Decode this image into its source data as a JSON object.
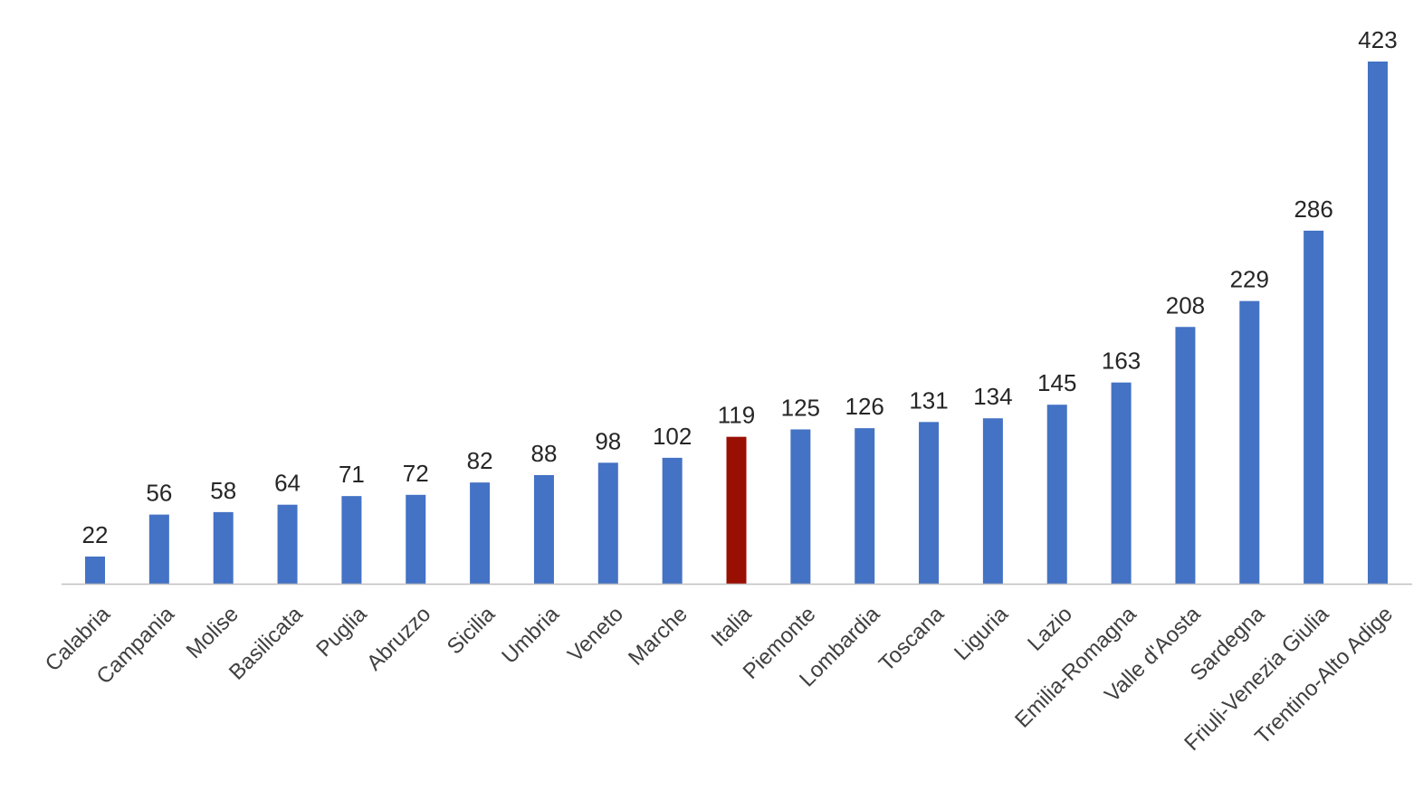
{
  "chart_data": {
    "type": "bar",
    "categories": [
      "Calabria",
      "Campania",
      "Molise",
      "Basilicata",
      "Puglia",
      "Abruzzo",
      "Sicilia",
      "Umbria",
      "Veneto",
      "Marche",
      "Italia",
      "Piemonte",
      "Lombardia",
      "Toscana",
      "Liguria",
      "Lazio",
      "Emilia-Romagna",
      "Valle d'Aosta",
      "Sardegna",
      "Friuli-Venezia Giulia",
      "Trentino-Alto Adige"
    ],
    "values": [
      22,
      56,
      58,
      64,
      71,
      72,
      82,
      88,
      98,
      102,
      119,
      125,
      126,
      131,
      134,
      145,
      163,
      208,
      229,
      286,
      423
    ],
    "value_labels": [
      "22",
      "56",
      "58",
      "64",
      "71",
      "72",
      "82",
      "88",
      "98",
      "102",
      "119",
      "125",
      "126",
      "131",
      "134",
      "145",
      "163",
      "208",
      "229",
      "286",
      "423"
    ],
    "ylim": [
      0,
      423
    ],
    "grid": false,
    "legend": "none",
    "colors": {
      "bar": "#4472C4",
      "highlight": "#990F02",
      "axis": "#BFBFBF"
    },
    "highlight_category": "Italia"
  }
}
